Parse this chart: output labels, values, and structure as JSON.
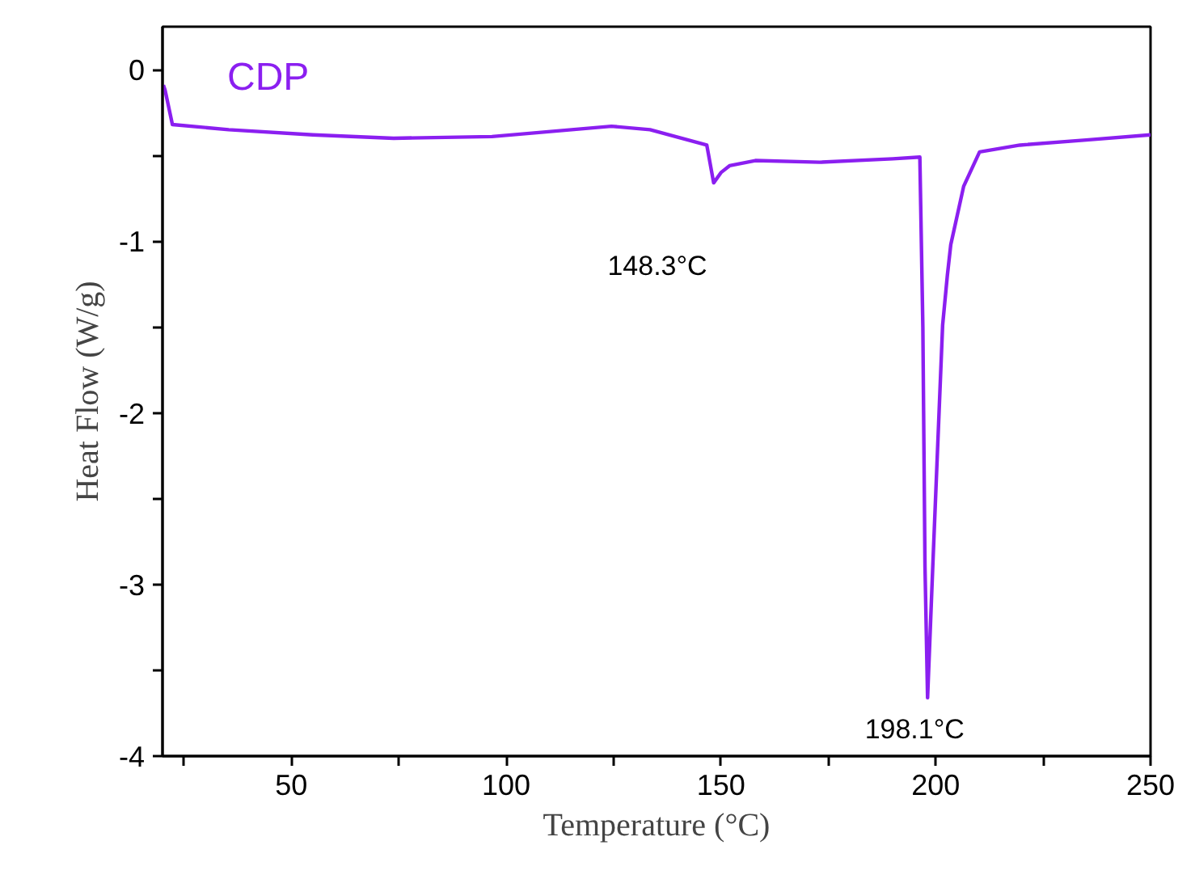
{
  "chart_data": {
    "type": "line",
    "xlabel": "Temperature (°C)",
    "ylabel": "Heat Flow (W/g)",
    "xlim": [
      20,
      250
    ],
    "ylim": [
      -4,
      0.25
    ],
    "xticks": [
      {
        "value": 25,
        "label": null
      },
      50,
      {
        "value": 75,
        "label": null
      },
      100,
      {
        "value": 125,
        "label": null
      },
      150,
      {
        "value": 175,
        "label": null
      },
      200,
      {
        "value": 225,
        "label": null
      },
      250
    ],
    "yticks": [
      -4,
      {
        "value": -3.5,
        "label": null
      },
      -3,
      {
        "value": -2.5,
        "label": null
      },
      -2,
      {
        "value": -1.5,
        "label": null
      },
      -1,
      {
        "value": -0.5,
        "label": null
      },
      0
    ],
    "grid": false,
    "legend": false,
    "marker": "none",
    "line_style": "solid",
    "series": [
      {
        "name": "CDP",
        "color": "#8b1ff0",
        "x": [
          20.2,
          20.6,
          22.3,
          35.4,
          55,
          73.8,
          96.7,
          124.5,
          133.5,
          146.7,
          148.3,
          150,
          152,
          158,
          173,
          190,
          196.3,
          197,
          197.5,
          198.1,
          199.3,
          201.6,
          202.7,
          203.5,
          206.5,
          210.2,
          219.6,
          235,
          250
        ],
        "values": [
          -0.09,
          -0.12,
          -0.32,
          -0.35,
          -0.38,
          -0.4,
          -0.39,
          -0.33,
          -0.35,
          -0.44,
          -0.66,
          -0.6,
          -0.56,
          -0.53,
          -0.54,
          -0.52,
          -0.51,
          -1.5,
          -2.9,
          -3.66,
          -2.9,
          -1.49,
          -1.2,
          -1.02,
          -0.68,
          -0.48,
          -0.44,
          -0.41,
          -0.38
        ]
      }
    ],
    "annotations": [
      {
        "text": "148.3°C",
        "x": 148.3,
        "y": -0.66
      },
      {
        "text": "198.1°C",
        "x": 198.1,
        "y": -3.66
      }
    ]
  }
}
